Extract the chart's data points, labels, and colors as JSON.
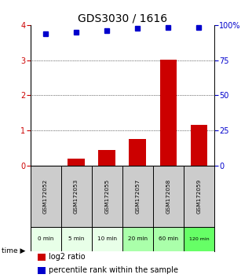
{
  "title": "GDS3030 / 1616",
  "samples": [
    "GSM172052",
    "GSM172053",
    "GSM172055",
    "GSM172057",
    "GSM172058",
    "GSM172059"
  ],
  "time_labels": [
    "0 min",
    "5 min",
    "10 min",
    "20 min",
    "60 min",
    "120 min"
  ],
  "log2_ratio": [
    0.0,
    0.2,
    0.45,
    0.75,
    3.02,
    1.15
  ],
  "percentile_rank": [
    93.5,
    95.0,
    96.0,
    97.5,
    98.5,
    98.5
  ],
  "bar_color": "#cc0000",
  "dot_color": "#0000cc",
  "ylim_left": [
    0,
    4
  ],
  "ylim_right": [
    0,
    100
  ],
  "yticks_left": [
    0,
    1,
    2,
    3,
    4
  ],
  "yticks_right": [
    0,
    25,
    50,
    75,
    100
  ],
  "yticklabels_right": [
    "0",
    "25",
    "50",
    "75",
    "100%"
  ],
  "grid_yticks": [
    1,
    2,
    3
  ],
  "sample_bg_color": "#cccccc",
  "time_colors": [
    "#e8ffe8",
    "#e8ffe8",
    "#e8ffe8",
    "#aaffaa",
    "#aaffaa",
    "#66ff66"
  ],
  "title_fontsize": 10,
  "tick_fontsize": 7,
  "legend_fontsize": 7,
  "left_tick_color": "#cc0000",
  "right_tick_color": "#0000cc"
}
